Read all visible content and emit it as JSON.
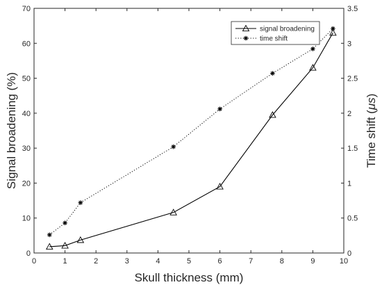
{
  "chart_data": {
    "type": "line",
    "xlabel": "Skull thickness (mm)",
    "ylabel_left": "Signal broadening (%)",
    "ylabel_right": "Time shift (",
    "ylabel_right_unit": "μs",
    "ylabel_right_close": ")",
    "xlim": [
      0,
      10
    ],
    "ylim_left": [
      0,
      70
    ],
    "ylim_right": [
      0,
      3.5
    ],
    "xticks": [
      "0",
      "1",
      "2",
      "3",
      "4",
      "5",
      "6",
      "7",
      "8",
      "9",
      "10"
    ],
    "yticks_left": [
      "0",
      "10",
      "20",
      "30",
      "40",
      "50",
      "60",
      "70"
    ],
    "yticks_right": [
      "0",
      "0.5",
      "1",
      "1.5",
      "2",
      "2.5",
      "3",
      "3.5"
    ],
    "grid": false,
    "legend_position": "top-right",
    "series": [
      {
        "name": "signal broadening",
        "axis": "left",
        "style": "solid",
        "marker": "triangle",
        "color": "#000000",
        "x": [
          0.5,
          1.0,
          1.5,
          4.5,
          6.0,
          7.7,
          9.0,
          9.65
        ],
        "y": [
          1.8,
          2.1,
          3.7,
          11.6,
          19.0,
          39.5,
          53.0,
          63.0
        ]
      },
      {
        "name": "time shift",
        "axis": "right",
        "style": "dotted",
        "marker": "asterisk",
        "color": "#000000",
        "x": [
          0.5,
          1.0,
          1.5,
          4.5,
          6.0,
          7.7,
          9.0,
          9.65
        ],
        "y": [
          0.26,
          0.43,
          0.72,
          1.52,
          2.06,
          2.57,
          2.92,
          3.21
        ]
      }
    ]
  }
}
